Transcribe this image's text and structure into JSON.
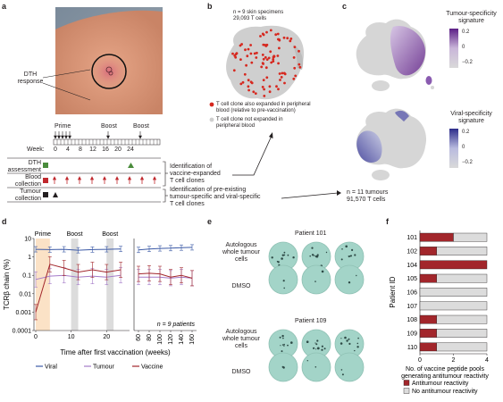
{
  "panels": {
    "a": {
      "label": "a",
      "photo_label": "DTH\nresponse",
      "timeline": {
        "phase_labels": [
          "Prime",
          "Boost",
          "Boost"
        ],
        "week_label": "Week:",
        "weeks": [
          "0",
          "4",
          "8",
          "12",
          "16",
          "20",
          "24"
        ],
        "rows": [
          {
            "label": "DTH\nassessment",
            "color": "#4a8c3c"
          },
          {
            "label": "Blood\ncollection",
            "color": "#c0282d"
          },
          {
            "label": "Tumour\ncollection",
            "color": "#231f20"
          }
        ],
        "callout1": "Identification of\nvaccine-expanded\nT cell clones",
        "callout2": "Identification of pre-existing\ntumour-specific and viral-specific\nT cell clones"
      }
    },
    "b": {
      "label": "b",
      "stats": "n = 9 skin specimens\n29,093 T cells",
      "legend": [
        {
          "text": "T cell clone also expanded in peripheral\nblood (relative to pre-vaccination)",
          "color": "#d6281f"
        },
        {
          "text": "T cell clone not expanded in\nperipheral blood",
          "color": "#cfcfcf"
        }
      ]
    },
    "c": {
      "label": "c",
      "sig1": "Tumour-specificity\nsignature",
      "sig2": "Viral-specificity\nsignature",
      "ticks1": [
        "0.2",
        "0",
        "−0.2"
      ],
      "ticks2": [
        "0.2",
        "0",
        "−0.2"
      ],
      "stats": "n = 11 tumours\n91,570 T cells"
    },
    "d": {
      "label": "d",
      "phase_labels": [
        "Prime",
        "Boost",
        "Boost"
      ],
      "n_label": "n = 9 patients"
    },
    "e": {
      "label": "e",
      "patients": [
        {
          "title": "Patient 101",
          "rows": [
            "Autologous\nwhole tumour\ncells",
            "DMSO"
          ]
        },
        {
          "title": "Patient 109",
          "rows": [
            "Autologous\nwhole tumour\ncells",
            "DMSO"
          ]
        }
      ]
    },
    "f": {
      "label": "f"
    }
  },
  "chart_data": [
    {
      "type": "line",
      "title": "",
      "xlabel": "Time after first vaccination (weeks)",
      "ylabel": "TCRβ chain (%)",
      "yscale": "log",
      "ylim": [
        0.0001,
        10
      ],
      "yticks": [
        "10",
        "1",
        "0.1",
        "0.01",
        "0.001",
        "0.0001"
      ],
      "xticks": [
        "0",
        "10",
        "20",
        "60",
        "80",
        "100",
        "120",
        "140",
        "160"
      ],
      "x": [
        0,
        4,
        8,
        12,
        16,
        20,
        24,
        60,
        80,
        100,
        120,
        140,
        160
      ],
      "series": [
        {
          "name": "Viral",
          "color": "#3c5aa6",
          "values": [
            2.6,
            2.5,
            2.6,
            2.3,
            2.5,
            2.6,
            2.7,
            2.4,
            2.7,
            2.9,
            3.0,
            3.2,
            3.3
          ]
        },
        {
          "name": "Tumour",
          "color": "#a57bc9",
          "values": [
            0.06,
            0.09,
            0.1,
            0.08,
            0.09,
            0.08,
            0.1,
            0.08,
            0.08,
            0.08,
            0.07,
            0.08,
            0.07
          ]
        },
        {
          "name": "Vaccine",
          "color": "#a2262b",
          "values": [
            0.001,
            0.4,
            0.25,
            0.15,
            0.2,
            0.15,
            0.2,
            0.12,
            0.13,
            0.12,
            0.08,
            0.1,
            0.07
          ]
        }
      ],
      "shaded": [
        {
          "label": "Prime",
          "color": "#fbe2c6"
        },
        {
          "label": "Boost",
          "color": "#dcdcdc"
        },
        {
          "label": "Boost",
          "color": "#dcdcdc"
        }
      ]
    },
    {
      "type": "bar",
      "orientation": "horizontal-stacked",
      "title": "",
      "ylabel": "Patient ID",
      "xlabel": "No. of vaccine peptide pools\ngenerating antitumour reactivity",
      "categories": [
        "101",
        "102",
        "104",
        "105",
        "106",
        "107",
        "108",
        "109",
        "110"
      ],
      "xlim": [
        0,
        4
      ],
      "xticks": [
        "0",
        "2",
        "4"
      ],
      "series": [
        {
          "name": "Antitumour reactivity",
          "color": "#a2262b",
          "values": [
            2,
            1,
            4,
            1,
            0,
            0,
            1,
            1,
            1
          ]
        },
        {
          "name": "No antitumour reactivity",
          "color": "#dcdcdc",
          "values": [
            2,
            3,
            0,
            3,
            4,
            4,
            3,
            3,
            3
          ]
        }
      ]
    }
  ]
}
